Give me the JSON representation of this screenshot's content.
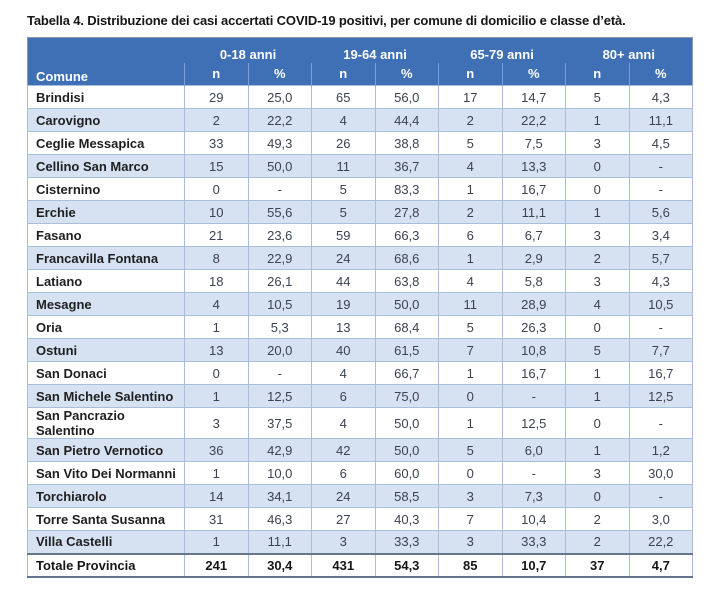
{
  "title": "Tabella 4. Distribuzione dei casi accertati COVID-19 positivi, per comune di domicilio e classe d’età.",
  "table": {
    "comune_header": "Comune",
    "age_groups": [
      "0-18 anni",
      "19-64 anni",
      "65-79 anni",
      "80+ anni"
    ],
    "sub_headers": [
      "n",
      "%"
    ],
    "rows": [
      {
        "comune": "Brindisi",
        "values": [
          "29",
          "25,0",
          "65",
          "56,0",
          "17",
          "14,7",
          "5",
          "4,3"
        ]
      },
      {
        "comune": "Carovigno",
        "values": [
          "2",
          "22,2",
          "4",
          "44,4",
          "2",
          "22,2",
          "1",
          "11,1"
        ]
      },
      {
        "comune": "Ceglie Messapica",
        "values": [
          "33",
          "49,3",
          "26",
          "38,8",
          "5",
          "7,5",
          "3",
          "4,5"
        ]
      },
      {
        "comune": "Cellino San Marco",
        "values": [
          "15",
          "50,0",
          "11",
          "36,7",
          "4",
          "13,3",
          "0",
          "-"
        ]
      },
      {
        "comune": "Cisternino",
        "values": [
          "0",
          "-",
          "5",
          "83,3",
          "1",
          "16,7",
          "0",
          "-"
        ]
      },
      {
        "comune": "Erchie",
        "values": [
          "10",
          "55,6",
          "5",
          "27,8",
          "2",
          "11,1",
          "1",
          "5,6"
        ]
      },
      {
        "comune": "Fasano",
        "values": [
          "21",
          "23,6",
          "59",
          "66,3",
          "6",
          "6,7",
          "3",
          "3,4"
        ]
      },
      {
        "comune": "Francavilla Fontana",
        "values": [
          "8",
          "22,9",
          "24",
          "68,6",
          "1",
          "2,9",
          "2",
          "5,7"
        ]
      },
      {
        "comune": "Latiano",
        "values": [
          "18",
          "26,1",
          "44",
          "63,8",
          "4",
          "5,8",
          "3",
          "4,3"
        ]
      },
      {
        "comune": "Mesagne",
        "values": [
          "4",
          "10,5",
          "19",
          "50,0",
          "11",
          "28,9",
          "4",
          "10,5"
        ]
      },
      {
        "comune": "Oria",
        "values": [
          "1",
          "5,3",
          "13",
          "68,4",
          "5",
          "26,3",
          "0",
          "-"
        ]
      },
      {
        "comune": "Ostuni",
        "values": [
          "13",
          "20,0",
          "40",
          "61,5",
          "7",
          "10,8",
          "5",
          "7,7"
        ]
      },
      {
        "comune": "San Donaci",
        "values": [
          "0",
          "-",
          "4",
          "66,7",
          "1",
          "16,7",
          "1",
          "16,7"
        ]
      },
      {
        "comune": "San Michele Salentino",
        "values": [
          "1",
          "12,5",
          "6",
          "75,0",
          "0",
          "-",
          "1",
          "12,5"
        ]
      },
      {
        "comune": "San Pancrazio Salentino",
        "values": [
          "3",
          "37,5",
          "4",
          "50,0",
          "1",
          "12,5",
          "0",
          "-"
        ]
      },
      {
        "comune": "San Pietro Vernotico",
        "values": [
          "36",
          "42,9",
          "42",
          "50,0",
          "5",
          "6,0",
          "1",
          "1,2"
        ]
      },
      {
        "comune": "San Vito Dei Normanni",
        "values": [
          "1",
          "10,0",
          "6",
          "60,0",
          "0",
          "-",
          "3",
          "30,0"
        ]
      },
      {
        "comune": "Torchiarolo",
        "values": [
          "14",
          "34,1",
          "24",
          "58,5",
          "3",
          "7,3",
          "0",
          "-"
        ]
      },
      {
        "comune": "Torre Santa Susanna",
        "values": [
          "31",
          "46,3",
          "27",
          "40,3",
          "7",
          "10,4",
          "2",
          "3,0"
        ]
      },
      {
        "comune": "Villa Castelli",
        "values": [
          "1",
          "11,1",
          "3",
          "33,3",
          "3",
          "33,3",
          "2",
          "22,2"
        ]
      }
    ],
    "total_row": {
      "comune": "Totale Provincia",
      "values": [
        "241",
        "30,4",
        "431",
        "54,3",
        "85",
        "10,7",
        "37",
        "4,7"
      ]
    }
  },
  "colors": {
    "header_bg": "#3f6fb5",
    "header_text": "#ffffff",
    "band_bg": "#d6e1f2",
    "cell_border": "#a9bedb",
    "outer_border": "#8b99ab",
    "total_border": "#66758c",
    "body_text": "#3c4251",
    "comune_text": "#1f1f1f"
  }
}
